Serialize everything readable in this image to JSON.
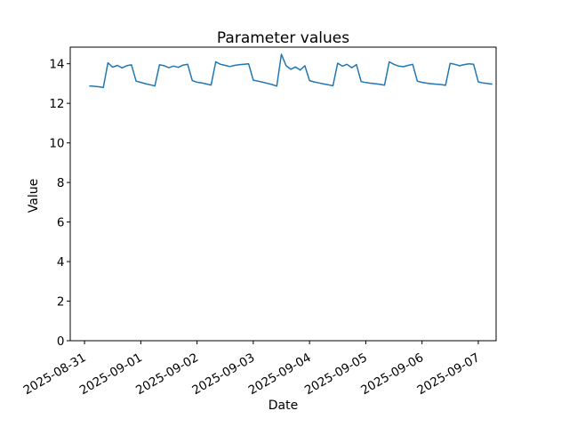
{
  "chart_data": {
    "type": "line",
    "title": "Parameter values",
    "xlabel": "Date",
    "ylabel": "Value",
    "grid": false,
    "legend": "none",
    "line_color": "#1f77b4",
    "axis_color": "#000000",
    "x_axis": {
      "unit": "hours since 2025-08-31 00:00",
      "range": [
        -6.1,
        175.6
      ],
      "tick_hours": [
        0,
        24,
        48,
        72,
        96,
        120,
        144,
        168
      ],
      "tick_labels": [
        "2025-08-31",
        "2025-09-01",
        "2025-09-02",
        "2025-09-03",
        "2025-09-04",
        "2025-09-05",
        "2025-09-06",
        "2025-09-07"
      ],
      "tick_label_rotation_deg": 30
    },
    "y_axis": {
      "range": [
        0,
        14.84
      ],
      "ticks": [
        0,
        2,
        4,
        6,
        8,
        10,
        12,
        14
      ],
      "tick_labels": [
        "0",
        "2",
        "4",
        "6",
        "8",
        "10",
        "12",
        "14"
      ]
    },
    "series": [
      {
        "name": "parameter-values",
        "color": "#1f77b4",
        "x_hours": [
          2,
          4,
          6,
          8,
          10,
          12,
          14,
          16,
          18,
          20,
          22,
          24,
          26,
          28,
          30,
          32,
          34,
          36,
          38,
          40,
          42,
          44,
          46,
          48,
          50,
          52,
          54,
          56,
          58,
          60,
          62,
          64,
          66,
          68,
          70,
          72,
          74,
          76,
          78,
          80,
          82,
          84,
          86,
          88,
          90,
          92,
          94,
          96,
          98,
          100,
          102,
          104,
          106,
          108,
          110,
          112,
          114,
          116,
          118,
          120,
          122,
          124,
          126,
          128,
          130,
          132,
          134,
          136,
          138,
          140,
          142,
          144,
          146,
          148,
          150,
          152,
          154,
          156,
          158,
          160,
          162,
          164,
          166,
          168,
          170,
          172,
          174
        ],
        "values": [
          12.88,
          12.86,
          12.84,
          12.8,
          14.05,
          13.83,
          13.92,
          13.79,
          13.9,
          13.95,
          13.12,
          13.06,
          12.99,
          12.94,
          12.88,
          13.95,
          13.9,
          13.8,
          13.88,
          13.82,
          13.93,
          13.97,
          13.15,
          13.07,
          13.03,
          12.98,
          12.92,
          14.1,
          13.97,
          13.92,
          13.86,
          13.92,
          13.95,
          13.97,
          14.0,
          13.17,
          13.12,
          13.07,
          13.01,
          12.95,
          12.87,
          14.48,
          13.9,
          13.72,
          13.84,
          13.68,
          13.9,
          13.15,
          13.08,
          13.03,
          12.98,
          12.94,
          12.89,
          14.03,
          13.88,
          13.97,
          13.8,
          13.96,
          13.1,
          13.05,
          13.02,
          12.99,
          12.96,
          12.92,
          14.1,
          13.97,
          13.88,
          13.85,
          13.92,
          13.97,
          13.12,
          13.06,
          13.02,
          12.99,
          12.97,
          12.95,
          12.91,
          14.02,
          13.97,
          13.9,
          13.96,
          14.0,
          13.97,
          13.08,
          13.03,
          13.0,
          12.97
        ]
      }
    ]
  }
}
